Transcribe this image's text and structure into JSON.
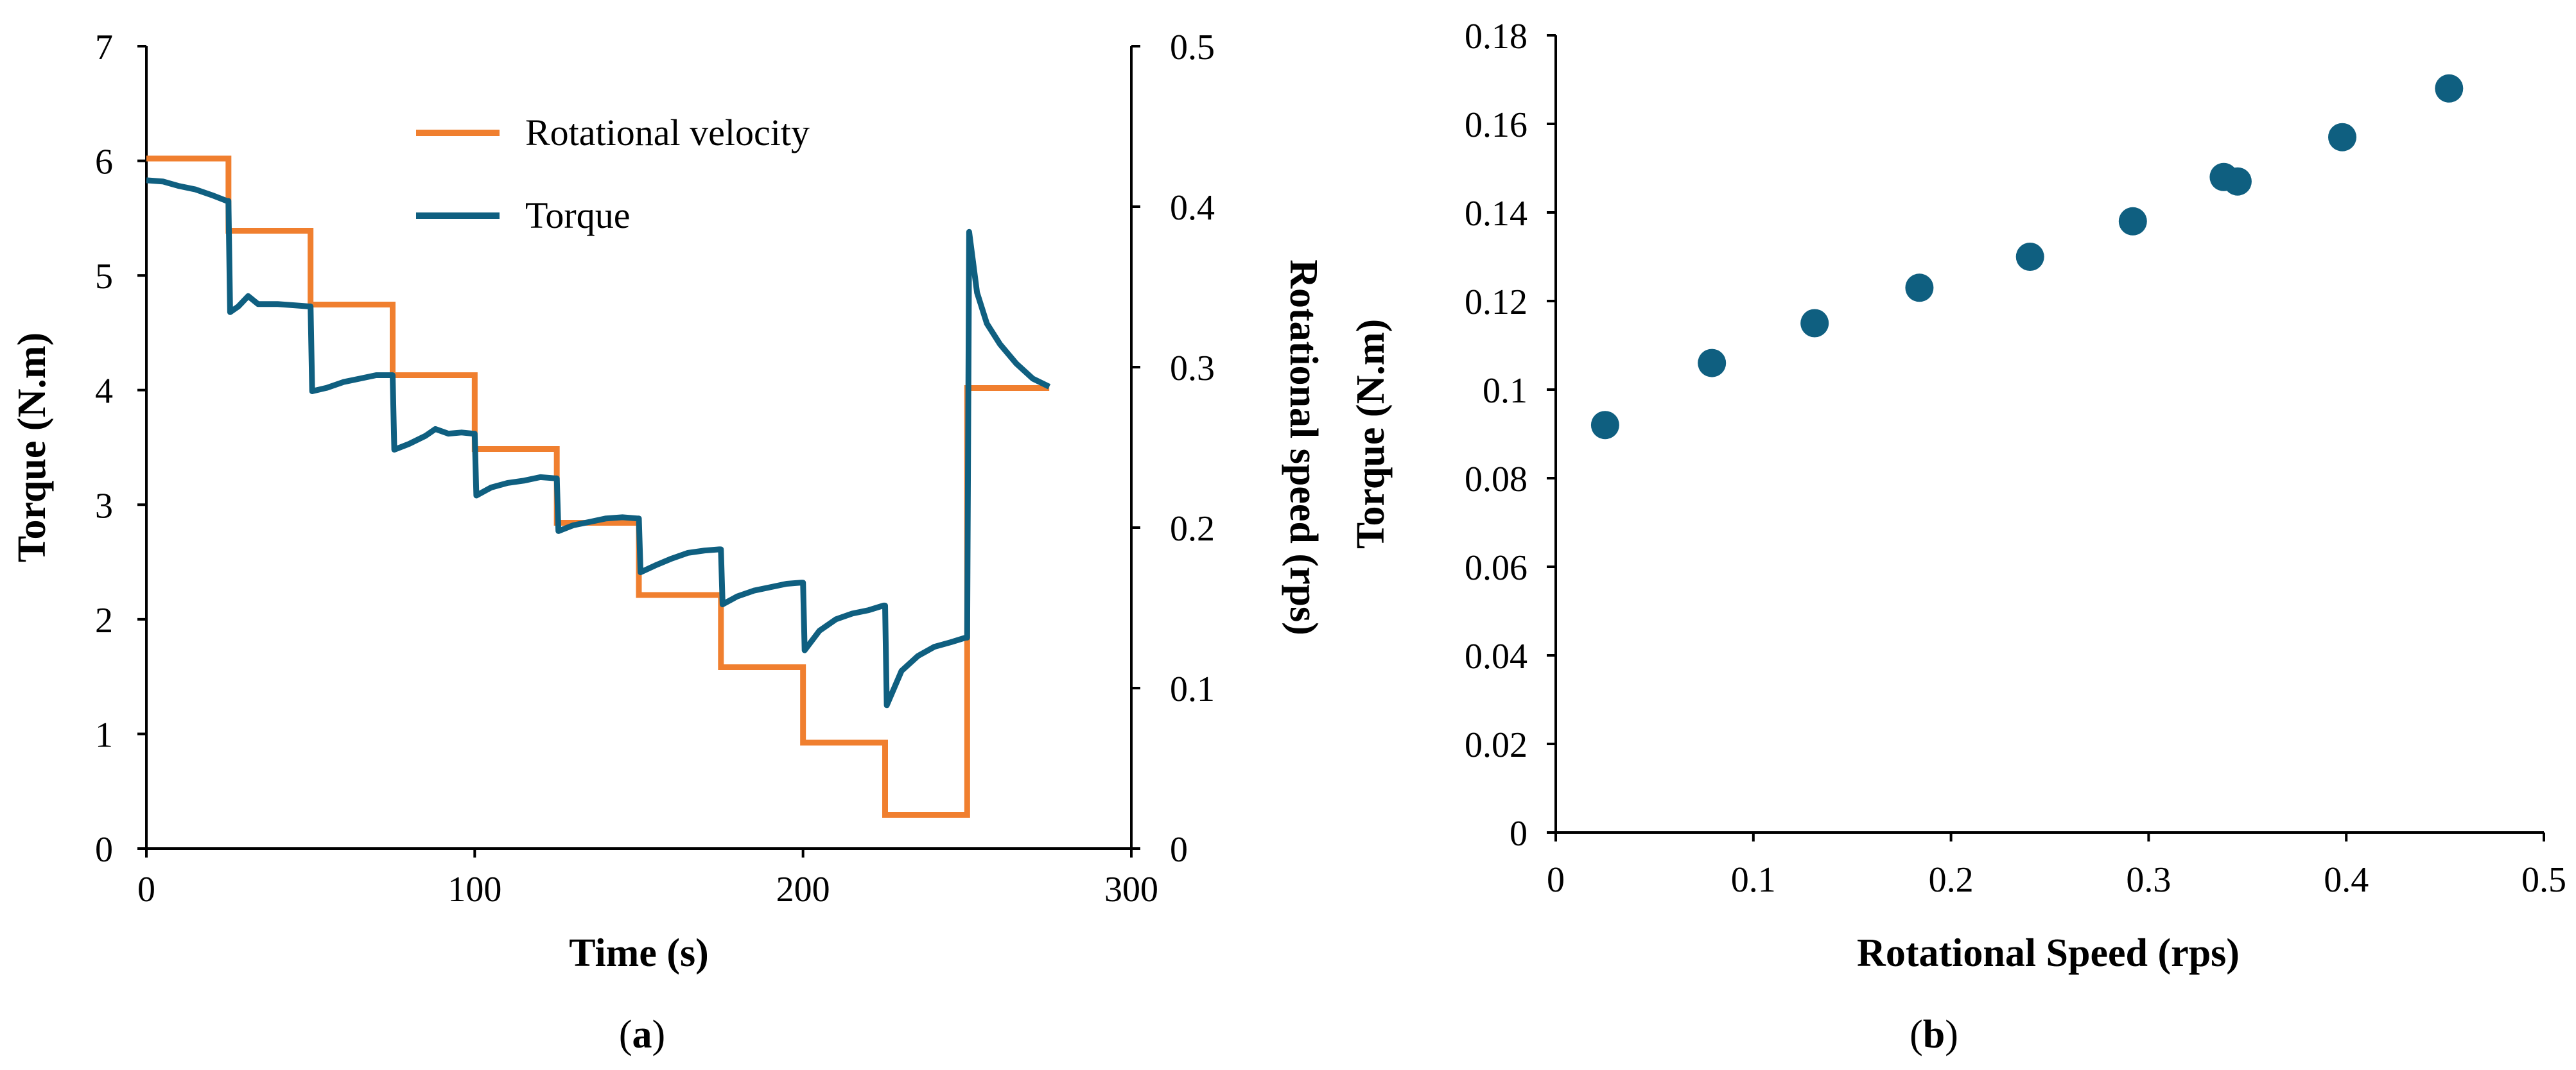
{
  "chart_data": [
    {
      "type": "line",
      "panel_label": "a",
      "title": "",
      "xlabel": "Time (s)",
      "ylabel": "Torque (N.m)",
      "y2label": "Rotational speed (rps)",
      "xlim": [
        0,
        300
      ],
      "ylim": [
        0,
        7
      ],
      "y2lim": [
        0,
        0.5
      ],
      "xticks": [
        "0",
        "100",
        "200",
        "300"
      ],
      "yticks": [
        "0",
        "1",
        "2",
        "3",
        "4",
        "5",
        "6",
        "7"
      ],
      "y2ticks": [
        "0",
        "0.1",
        "0.2",
        "0.3",
        "0.4",
        "0.5"
      ],
      "grid": false,
      "legend_position": "top-center",
      "series": [
        {
          "name": "Rotational velocity",
          "axis": "right",
          "color": "#f07f2f",
          "style": "step",
          "steps": [
            {
              "t0": 0,
              "t1": 25,
              "value": 0.43
            },
            {
              "t0": 25,
              "t1": 50,
              "value": 0.385
            },
            {
              "t0": 50,
              "t1": 75,
              "value": 0.339
            },
            {
              "t0": 75,
              "t1": 100,
              "value": 0.295
            },
            {
              "t0": 100,
              "t1": 125,
              "value": 0.249
            },
            {
              "t0": 125,
              "t1": 150,
              "value": 0.203
            },
            {
              "t0": 150,
              "t1": 175,
              "value": 0.158
            },
            {
              "t0": 175,
              "t1": 200,
              "value": 0.113
            },
            {
              "t0": 200,
              "t1": 225,
              "value": 0.066
            },
            {
              "t0": 225,
              "t1": 250,
              "value": 0.021
            },
            {
              "t0": 250,
              "t1": 275,
              "value": 0.287
            }
          ]
        },
        {
          "name": "Torque",
          "axis": "left",
          "color": "#0f5f80",
          "style": "line",
          "points": [
            [
              0,
              5.83
            ],
            [
              5,
              5.82
            ],
            [
              10,
              5.78
            ],
            [
              15,
              5.75
            ],
            [
              20,
              5.7
            ],
            [
              24.5,
              5.65
            ],
            [
              25,
              5.65
            ],
            [
              25.5,
              4.68
            ],
            [
              28,
              4.73
            ],
            [
              31,
              4.82
            ],
            [
              34,
              4.75
            ],
            [
              40,
              4.75
            ],
            [
              45,
              4.74
            ],
            [
              49.5,
              4.73
            ],
            [
              50,
              4.73
            ],
            [
              50.5,
              3.99
            ],
            [
              55,
              4.02
            ],
            [
              60,
              4.07
            ],
            [
              65,
              4.1
            ],
            [
              70,
              4.13
            ],
            [
              74.5,
              4.13
            ],
            [
              75,
              4.13
            ],
            [
              75.5,
              3.48
            ],
            [
              80,
              3.53
            ],
            [
              85,
              3.6
            ],
            [
              88,
              3.66
            ],
            [
              92,
              3.62
            ],
            [
              96,
              3.63
            ],
            [
              99.5,
              3.62
            ],
            [
              100,
              3.62
            ],
            [
              100.5,
              3.08
            ],
            [
              105,
              3.15
            ],
            [
              110,
              3.19
            ],
            [
              115,
              3.21
            ],
            [
              120,
              3.24
            ],
            [
              124.5,
              3.23
            ],
            [
              125,
              3.23
            ],
            [
              125.5,
              2.77
            ],
            [
              130,
              2.82
            ],
            [
              135,
              2.85
            ],
            [
              140,
              2.88
            ],
            [
              145,
              2.89
            ],
            [
              149.5,
              2.88
            ],
            [
              150,
              2.88
            ],
            [
              150.5,
              2.41
            ],
            [
              155,
              2.47
            ],
            [
              160,
              2.53
            ],
            [
              165,
              2.58
            ],
            [
              170,
              2.6
            ],
            [
              174.5,
              2.61
            ],
            [
              175,
              2.61
            ],
            [
              175.5,
              2.13
            ],
            [
              180,
              2.2
            ],
            [
              185,
              2.25
            ],
            [
              190,
              2.28
            ],
            [
              195,
              2.31
            ],
            [
              199.5,
              2.32
            ],
            [
              200,
              2.32
            ],
            [
              200.5,
              1.73
            ],
            [
              205,
              1.9
            ],
            [
              210,
              2.0
            ],
            [
              215,
              2.05
            ],
            [
              220,
              2.08
            ],
            [
              224.5,
              2.12
            ],
            [
              225,
              2.12
            ],
            [
              225.5,
              1.25
            ],
            [
              230,
              1.55
            ],
            [
              235,
              1.68
            ],
            [
              240,
              1.76
            ],
            [
              245,
              1.8
            ],
            [
              249.5,
              1.84
            ],
            [
              250,
              1.84
            ],
            [
              250.6,
              5.38
            ],
            [
              253,
              4.85
            ],
            [
              256,
              4.58
            ],
            [
              260,
              4.4
            ],
            [
              265,
              4.23
            ],
            [
              270,
              4.1
            ],
            [
              275,
              4.03
            ]
          ]
        }
      ],
      "annotations": []
    },
    {
      "type": "scatter",
      "panel_label": "b",
      "title": "",
      "xlabel": "Rotational Speed (rps)",
      "ylabel": "Torque (N.m)",
      "xlim": [
        0,
        0.5
      ],
      "ylim": [
        0,
        0.18
      ],
      "xticks": [
        "0",
        "0.1",
        "0.2",
        "0.3",
        "0.4",
        "0.5"
      ],
      "yticks": [
        "0",
        "0.02",
        "0.04",
        "0.06",
        "0.08",
        "0.1",
        "0.12",
        "0.14",
        "0.16",
        "0.18"
      ],
      "grid": false,
      "color": "#0f5f80",
      "series": [
        {
          "name": "Torque",
          "points": [
            [
              0.025,
              0.092
            ],
            [
              0.079,
              0.106
            ],
            [
              0.131,
              0.115
            ],
            [
              0.184,
              0.123
            ],
            [
              0.24,
              0.13
            ],
            [
              0.292,
              0.138
            ],
            [
              0.338,
              0.148
            ],
            [
              0.345,
              0.147
            ],
            [
              0.398,
              0.157
            ],
            [
              0.452,
              0.168
            ]
          ]
        }
      ]
    }
  ]
}
